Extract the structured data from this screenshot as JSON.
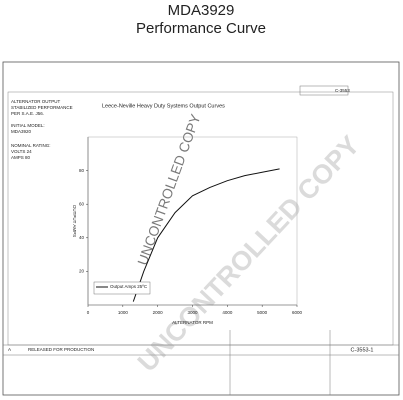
{
  "page_title": "MDA3929",
  "page_subtitle": "Performance Curve",
  "notes": [
    "ALTERNATOR OUTPUT",
    "STABILIZED PERFORMANCE",
    "PER S.A.E. J56.",
    "INITIAL MODEL:",
    "MDA3920",
    "NOMINAL RATING:",
    "VOLTS 24",
    "AMPS 80"
  ],
  "drawing_number": "C-3553-1",
  "corner_number": "C-3553",
  "revision": "A",
  "revision_note": "RELEASED FOR PRODUCTION",
  "watermark": "UNCONTROLLED COPY",
  "watermark_small": "UNCONTROLLED COPY",
  "chart_data": {
    "type": "line",
    "title": "Leece-Neville Heavy Duty Systems Output Curves",
    "x_label": "ALTERNATOR RPM",
    "y_label": "OUTPUT AMPS",
    "x": [
      1300,
      1600,
      2000,
      2500,
      3000,
      3500,
      4000,
      4500,
      5000,
      5500
    ],
    "series": [
      {
        "name": "Output Amps 25ºC",
        "color": "#111111",
        "values": [
          2,
          20,
          40,
          55,
          65,
          70,
          74,
          77,
          79,
          81
        ]
      }
    ],
    "xlim": [
      0,
      6000
    ],
    "xticks": [
      0,
      1000,
      2000,
      3000,
      4000,
      5000,
      6000
    ],
    "ylim": [
      0,
      100
    ],
    "yticks": [
      20,
      40,
      60,
      80
    ],
    "grid": false
  }
}
